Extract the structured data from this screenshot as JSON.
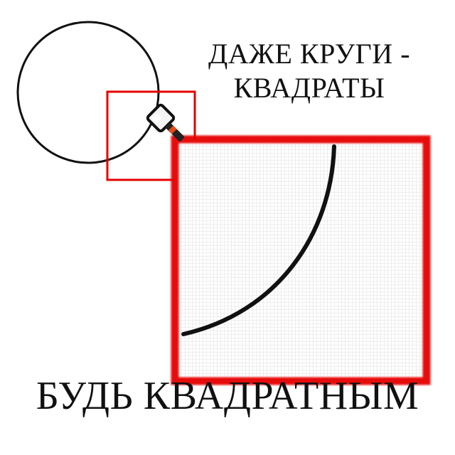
{
  "caption": {
    "line1": "ДАЖЕ КРУГИ -",
    "line2": "КВАДРАТЫ",
    "bottom": "БУДЬ КВАДРАТНЫМ"
  },
  "colors": {
    "outline": "#111111",
    "accent": "#e50000",
    "grid": "#d6d6d6",
    "magnifier_handle": "#222222",
    "magnifier_stripe": "#e34a1a"
  },
  "icons": {
    "magnifier": "magnifier-icon"
  }
}
